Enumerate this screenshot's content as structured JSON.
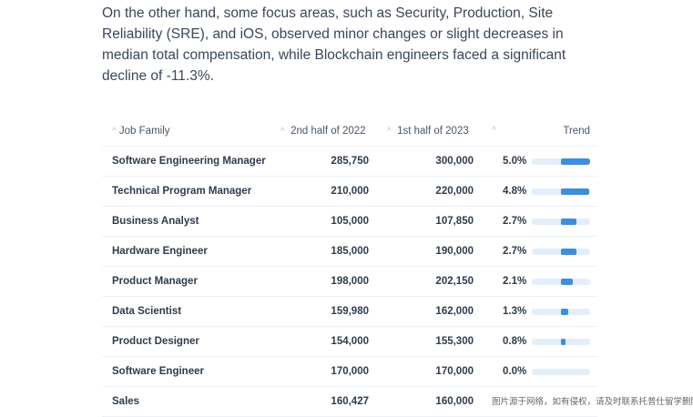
{
  "paragraph": "On the other hand, some focus areas, such as Security, Production, Site Reliability (SRE), and iOS, observed minor changes or slight decreases in median total compensation, while Blockchain engineers faced a significant decline of -11.3%.",
  "table": {
    "headers": {
      "job_family": "Job Family",
      "h2_2022": "2nd half of 2022",
      "h1_2023": "1st half of 2023",
      "trend": "Trend"
    },
    "sort_icon": "^",
    "rows": [
      {
        "job": "Software Engineering Manager",
        "v2022": "285,750",
        "v2023": "300,000",
        "pct": "5.0%",
        "trend_value": 5.0
      },
      {
        "job": "Technical Program Manager",
        "v2022": "210,000",
        "v2023": "220,000",
        "pct": "4.8%",
        "trend_value": 4.8
      },
      {
        "job": "Business Analyst",
        "v2022": "105,000",
        "v2023": "107,850",
        "pct": "2.7%",
        "trend_value": 2.7
      },
      {
        "job": "Hardware Engineer",
        "v2022": "185,000",
        "v2023": "190,000",
        "pct": "2.7%",
        "trend_value": 2.7
      },
      {
        "job": "Product Manager",
        "v2022": "198,000",
        "v2023": "202,150",
        "pct": "2.1%",
        "trend_value": 2.1
      },
      {
        "job": "Data Scientist",
        "v2022": "159,980",
        "v2023": "162,000",
        "pct": "1.3%",
        "trend_value": 1.3
      },
      {
        "job": "Product Designer",
        "v2022": "154,000",
        "v2023": "155,300",
        "pct": "0.8%",
        "trend_value": 0.8
      },
      {
        "job": "Software Engineer",
        "v2022": "170,000",
        "v2023": "170,000",
        "pct": "0.0%",
        "trend_value": 0.0
      },
      {
        "job": "Sales",
        "v2022": "160,427",
        "v2023": "160,000",
        "pct": "",
        "trend_value": null
      }
    ]
  },
  "watermark": "图片源于网络，如有侵权，请及时联系托普仕留学删除",
  "colors": {
    "bar_fill": "#3d8edc",
    "bar_track": "#e3eef9"
  }
}
